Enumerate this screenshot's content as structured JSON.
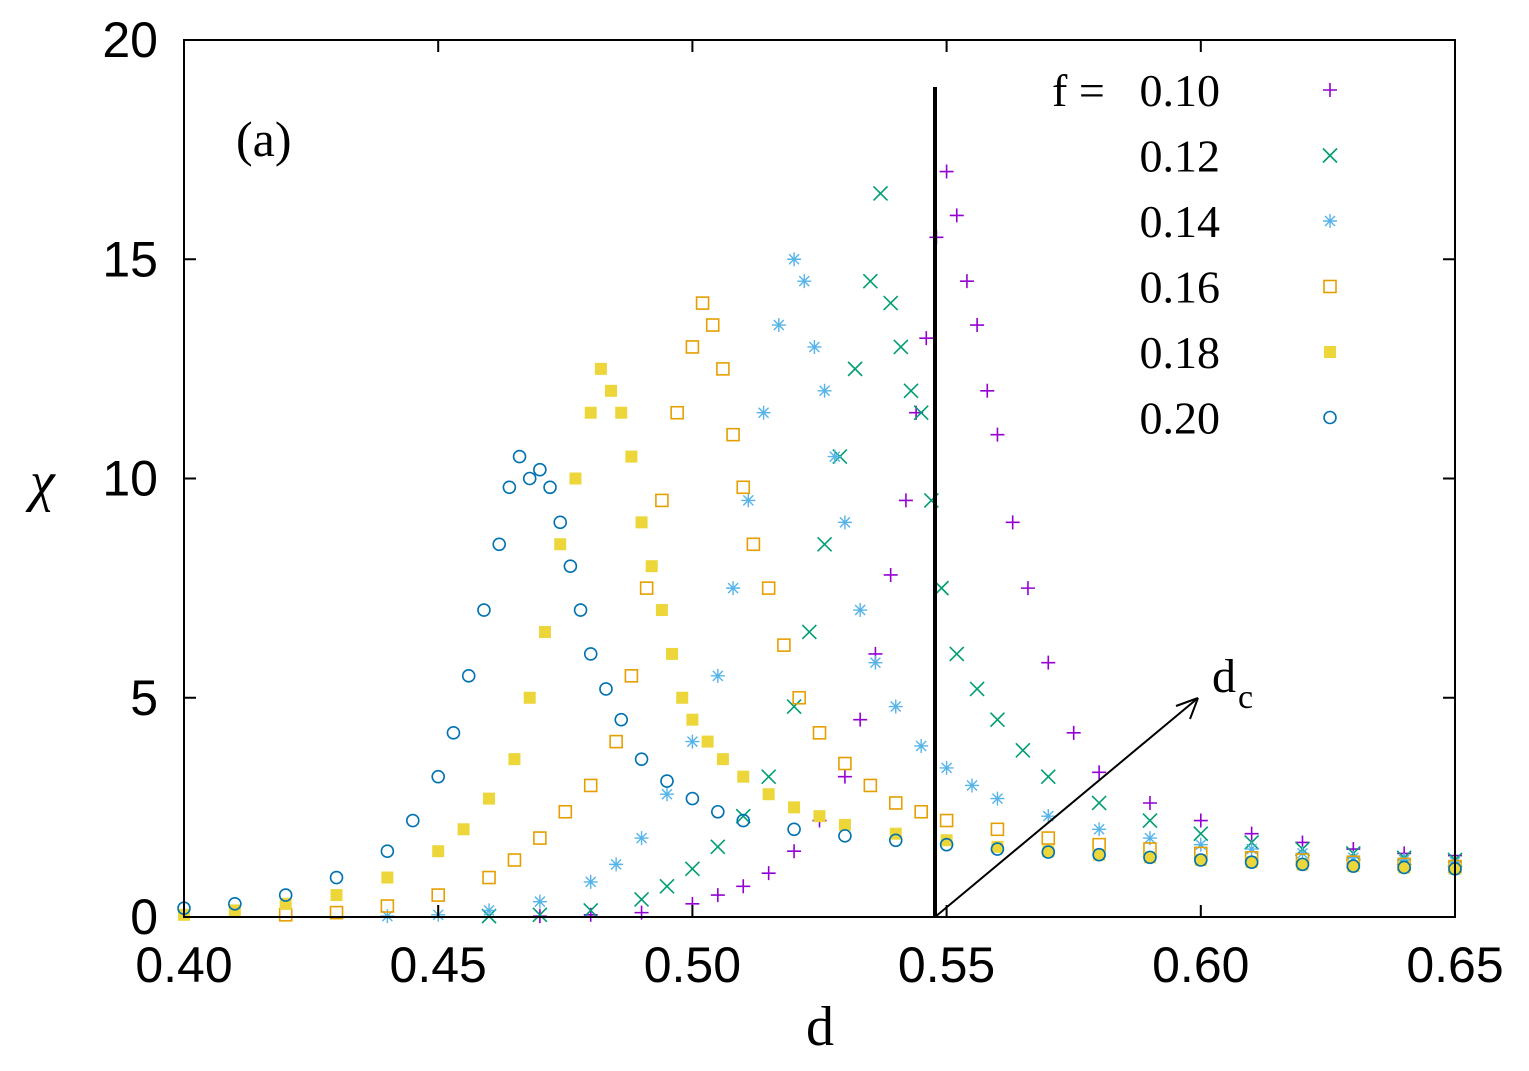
{
  "chart_data": {
    "type": "scatter",
    "title": "",
    "panel_label": "(a)",
    "xlabel": "d",
    "ylabel": "χ",
    "xlim": [
      0.4,
      0.65
    ],
    "ylim": [
      0,
      20
    ],
    "xticks": [
      "0.40",
      "0.45",
      "0.50",
      "0.55",
      "0.60",
      "0.65"
    ],
    "yticks": [
      "0",
      "5",
      "10",
      "15",
      "20"
    ],
    "grid": false,
    "legend_position": "top-right",
    "legend_prefix": "f =",
    "annotation": {
      "text": "d",
      "subscript": "c",
      "x": 0.548
    },
    "series": [
      {
        "name": "0.10",
        "color": "#9400d3",
        "marker": "plus",
        "x": [
          0.47,
          0.48,
          0.49,
          0.5,
          0.505,
          0.51,
          0.515,
          0.52,
          0.525,
          0.53,
          0.533,
          0.536,
          0.539,
          0.542,
          0.544,
          0.546,
          0.548,
          0.55,
          0.552,
          0.554,
          0.556,
          0.558,
          0.56,
          0.563,
          0.566,
          0.57,
          0.575,
          0.58,
          0.59,
          0.6,
          0.61,
          0.62,
          0.63,
          0.64,
          0.65
        ],
        "y": [
          0.02,
          0.05,
          0.1,
          0.3,
          0.5,
          0.7,
          1.0,
          1.5,
          2.2,
          3.2,
          4.5,
          6.0,
          7.8,
          9.5,
          11.5,
          13.2,
          15.5,
          17.0,
          16.0,
          14.5,
          13.5,
          12.0,
          11.0,
          9.0,
          7.5,
          5.8,
          4.2,
          3.3,
          2.6,
          2.2,
          1.9,
          1.7,
          1.55,
          1.45,
          1.4
        ]
      },
      {
        "name": "0.12",
        "color": "#009e73",
        "marker": "cross",
        "x": [
          0.46,
          0.47,
          0.48,
          0.49,
          0.495,
          0.5,
          0.505,
          0.51,
          0.515,
          0.52,
          0.523,
          0.526,
          0.529,
          0.532,
          0.535,
          0.537,
          0.539,
          0.541,
          0.543,
          0.545,
          0.547,
          0.549,
          0.552,
          0.556,
          0.56,
          0.565,
          0.57,
          0.58,
          0.59,
          0.6,
          0.61,
          0.62,
          0.63,
          0.64,
          0.65
        ],
        "y": [
          0.02,
          0.05,
          0.15,
          0.4,
          0.7,
          1.1,
          1.6,
          2.3,
          3.2,
          4.8,
          6.5,
          8.5,
          10.5,
          12.5,
          14.5,
          16.5,
          14.0,
          13.0,
          12.0,
          11.5,
          9.5,
          7.5,
          6.0,
          5.2,
          4.5,
          3.8,
          3.2,
          2.6,
          2.2,
          1.9,
          1.7,
          1.55,
          1.45,
          1.35,
          1.3
        ]
      },
      {
        "name": "0.14",
        "color": "#56b4e9",
        "marker": "star",
        "x": [
          0.44,
          0.45,
          0.46,
          0.47,
          0.48,
          0.485,
          0.49,
          0.495,
          0.5,
          0.505,
          0.508,
          0.511,
          0.514,
          0.517,
          0.52,
          0.522,
          0.524,
          0.526,
          0.528,
          0.53,
          0.533,
          0.536,
          0.54,
          0.545,
          0.55,
          0.555,
          0.56,
          0.57,
          0.58,
          0.59,
          0.6,
          0.61,
          0.62,
          0.63,
          0.64,
          0.65
        ],
        "y": [
          0.02,
          0.05,
          0.15,
          0.35,
          0.8,
          1.2,
          1.8,
          2.8,
          4.0,
          5.5,
          7.5,
          9.5,
          11.5,
          13.5,
          15.0,
          14.5,
          13.0,
          12.0,
          10.5,
          9.0,
          7.0,
          5.8,
          4.8,
          3.9,
          3.4,
          3.0,
          2.7,
          2.3,
          2.0,
          1.8,
          1.65,
          1.55,
          1.45,
          1.35,
          1.3,
          1.25
        ]
      },
      {
        "name": "0.16",
        "color": "#e69f00",
        "marker": "square-open",
        "x": [
          0.42,
          0.43,
          0.44,
          0.45,
          0.46,
          0.465,
          0.47,
          0.475,
          0.48,
          0.485,
          0.488,
          0.491,
          0.494,
          0.497,
          0.5,
          0.502,
          0.504,
          0.506,
          0.508,
          0.51,
          0.512,
          0.515,
          0.518,
          0.521,
          0.525,
          0.53,
          0.535,
          0.54,
          0.545,
          0.55,
          0.56,
          0.57,
          0.58,
          0.59,
          0.6,
          0.61,
          0.62,
          0.63,
          0.64,
          0.65
        ],
        "y": [
          0.05,
          0.1,
          0.25,
          0.5,
          0.9,
          1.3,
          1.8,
          2.4,
          3.0,
          4.0,
          5.5,
          7.5,
          9.5,
          11.5,
          13.0,
          14.0,
          13.5,
          12.5,
          11.0,
          9.8,
          8.5,
          7.5,
          6.2,
          5.0,
          4.2,
          3.5,
          3.0,
          2.6,
          2.4,
          2.2,
          2.0,
          1.8,
          1.65,
          1.55,
          1.45,
          1.35,
          1.3,
          1.25,
          1.2,
          1.15
        ]
      },
      {
        "name": "0.18",
        "color": "#f0e442",
        "fill": "#ecd63a",
        "marker": "square-filled",
        "x": [
          0.4,
          0.41,
          0.42,
          0.43,
          0.44,
          0.45,
          0.455,
          0.46,
          0.465,
          0.468,
          0.471,
          0.474,
          0.477,
          0.48,
          0.482,
          0.484,
          0.486,
          0.488,
          0.49,
          0.492,
          0.494,
          0.496,
          0.498,
          0.5,
          0.503,
          0.506,
          0.51,
          0.515,
          0.52,
          0.525,
          0.53,
          0.54,
          0.55,
          0.56,
          0.57,
          0.58,
          0.59,
          0.6,
          0.61,
          0.62,
          0.63,
          0.64,
          0.65
        ],
        "y": [
          0.05,
          0.15,
          0.3,
          0.5,
          0.9,
          1.5,
          2.0,
          2.7,
          3.6,
          5.0,
          6.5,
          8.5,
          10.0,
          11.5,
          12.5,
          12.0,
          11.5,
          10.5,
          9.0,
          8.0,
          7.0,
          6.0,
          5.0,
          4.5,
          4.0,
          3.6,
          3.2,
          2.8,
          2.5,
          2.3,
          2.1,
          1.9,
          1.75,
          1.6,
          1.5,
          1.42,
          1.36,
          1.3,
          1.25,
          1.2,
          1.16,
          1.13,
          1.1
        ]
      },
      {
        "name": "0.20",
        "color": "#0072b2",
        "marker": "circle-open",
        "x": [
          0.4,
          0.41,
          0.42,
          0.43,
          0.44,
          0.445,
          0.45,
          0.453,
          0.456,
          0.459,
          0.462,
          0.464,
          0.466,
          0.468,
          0.47,
          0.472,
          0.474,
          0.476,
          0.478,
          0.48,
          0.483,
          0.486,
          0.49,
          0.495,
          0.5,
          0.505,
          0.51,
          0.52,
          0.53,
          0.54,
          0.55,
          0.56,
          0.57,
          0.58,
          0.59,
          0.6,
          0.61,
          0.62,
          0.63,
          0.64,
          0.65
        ],
        "y": [
          0.2,
          0.3,
          0.5,
          0.9,
          1.5,
          2.2,
          3.2,
          4.2,
          5.5,
          7.0,
          8.5,
          9.8,
          10.5,
          10.0,
          10.2,
          9.8,
          9.0,
          8.0,
          7.0,
          6.0,
          5.2,
          4.5,
          3.6,
          3.1,
          2.7,
          2.4,
          2.2,
          2.0,
          1.85,
          1.75,
          1.65,
          1.55,
          1.48,
          1.42,
          1.36,
          1.3,
          1.25,
          1.2,
          1.16,
          1.13,
          1.1
        ]
      }
    ]
  }
}
